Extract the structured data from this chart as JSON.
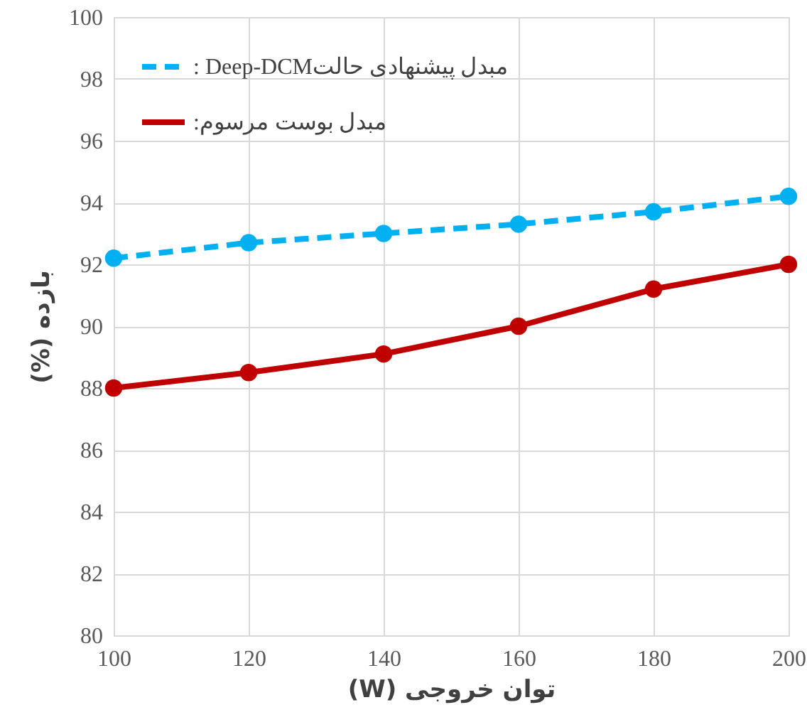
{
  "chart_data": {
    "type": "line",
    "xlabel": "توان خروجی (W)",
    "ylabel": "بازده (%)",
    "x": [
      100,
      120,
      140,
      160,
      180,
      200
    ],
    "series": [
      {
        "name": "مبدل پیشنهادی حالتDeep-DCM :",
        "color": "#00b0f0",
        "line_style": "dashed",
        "values": [
          92.2,
          92.7,
          93.0,
          93.3,
          93.7,
          94.2
        ]
      },
      {
        "name": "مبدل بوست مرسوم:",
        "color": "#c00000",
        "line_style": "solid",
        "values": [
          88.0,
          88.5,
          89.1,
          90.0,
          91.2,
          92.0
        ]
      }
    ],
    "xlim": [
      100,
      200
    ],
    "xticks": [
      100,
      120,
      140,
      160,
      180,
      200
    ],
    "ylim": [
      80,
      100
    ],
    "yticks": [
      80,
      82,
      84,
      86,
      88,
      90,
      92,
      94,
      96,
      98,
      100
    ],
    "grid": true,
    "legend": "top left",
    "marker": "circle"
  }
}
